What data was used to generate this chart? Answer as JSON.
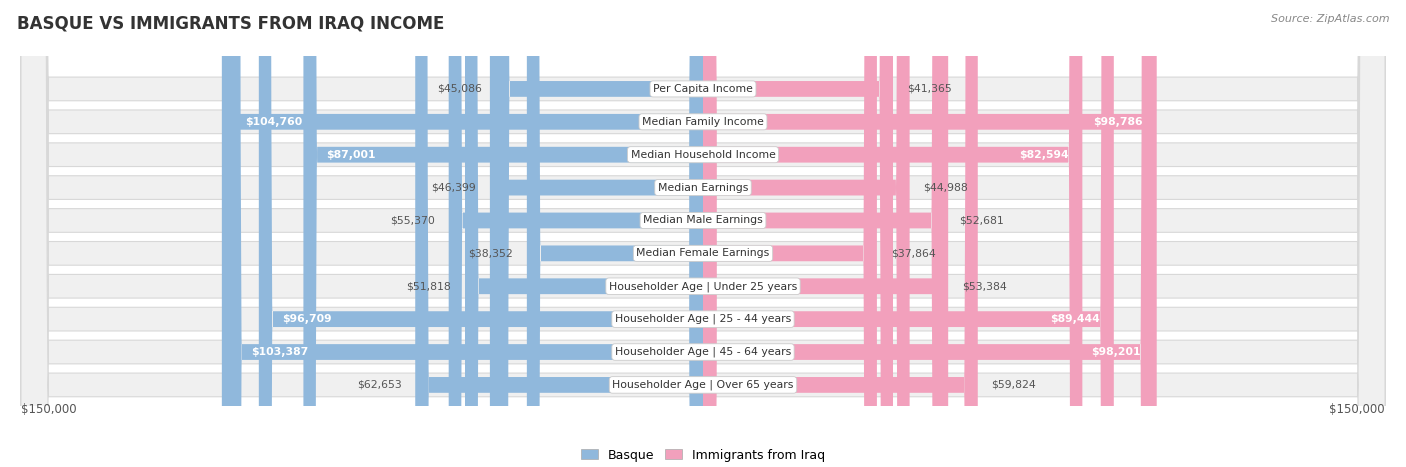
{
  "title": "BASQUE VS IMMIGRANTS FROM IRAQ INCOME",
  "source": "Source: ZipAtlas.com",
  "categories": [
    "Per Capita Income",
    "Median Family Income",
    "Median Household Income",
    "Median Earnings",
    "Median Male Earnings",
    "Median Female Earnings",
    "Householder Age | Under 25 years",
    "Householder Age | 25 - 44 years",
    "Householder Age | 45 - 64 years",
    "Householder Age | Over 65 years"
  ],
  "basque_values": [
    45086,
    104760,
    87001,
    46399,
    55370,
    38352,
    51818,
    96709,
    103387,
    62653
  ],
  "iraq_values": [
    41365,
    98786,
    82594,
    44988,
    52681,
    37864,
    53384,
    89444,
    98201,
    59824
  ],
  "basque_color": "#90b8dc",
  "iraq_color": "#f2a0bc",
  "max_value": 150000,
  "fig_bg": "#ffffff",
  "row_bg": "#efefef",
  "title_color": "#333333",
  "source_color": "#888888",
  "outside_label_color": "#555555",
  "inside_label_color": "#ffffff",
  "inside_threshold": 75000,
  "label_fontsize": 7.8,
  "cat_fontsize": 7.8,
  "title_fontsize": 12,
  "source_fontsize": 8
}
